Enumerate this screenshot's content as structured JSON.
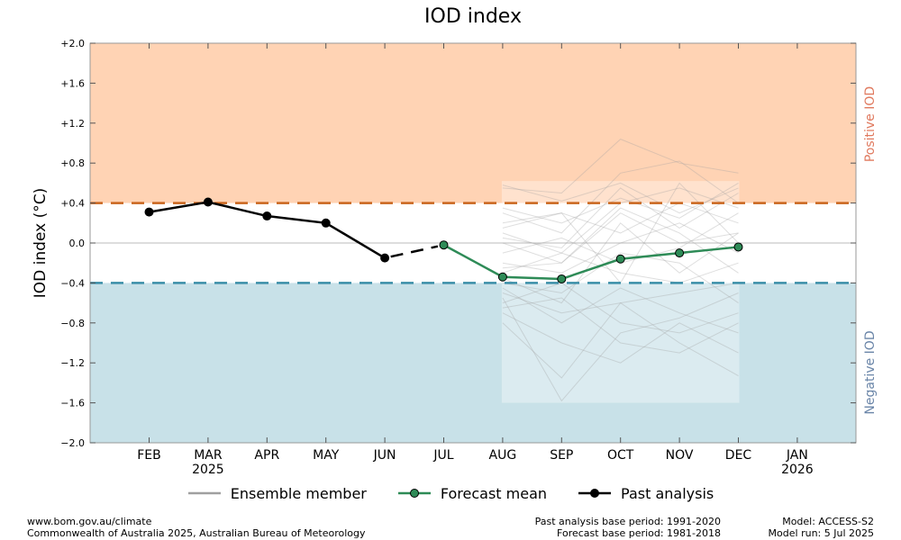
{
  "chart_data": {
    "type": "line",
    "title": "IOD index",
    "ylabel": "IOD index (°C)",
    "ylim": [
      -2.0,
      2.0
    ],
    "yticks": [
      "+2.0",
      "+1.6",
      "+1.2",
      "+0.8",
      "+0.4",
      "0.0",
      "−0.4",
      "−0.8",
      "−1.2",
      "−1.6",
      "−2.0"
    ],
    "ytick_values": [
      2.0,
      1.6,
      1.2,
      0.8,
      0.4,
      0.0,
      -0.4,
      -0.8,
      -1.2,
      -1.6,
      -2.0
    ],
    "categories": [
      "FEB",
      "MAR",
      "APR",
      "MAY",
      "JUN",
      "JUL",
      "AUG",
      "SEP",
      "OCT",
      "NOV",
      "DEC",
      "JAN"
    ],
    "year_labels": [
      {
        "after": "MAR",
        "text": "2025"
      },
      {
        "after": "JAN",
        "text": "2026"
      }
    ],
    "thresholds": {
      "positive": 0.4,
      "negative": -0.4
    },
    "zone_labels": {
      "positive": "Positive IOD",
      "negative": "Negative IOD"
    },
    "colors": {
      "positive_fill": "#ffd3b4",
      "negative_fill": "#c8e1e8",
      "positive_line": "#c9651d",
      "negative_line": "#3a8ea8",
      "forecast": "#2e8b57",
      "past": "#000000",
      "ensemble": "#a0a0a0",
      "positive_text": "#e07a5f",
      "negative_text": "#6a85a8"
    },
    "series": [
      {
        "name": "Past analysis",
        "points": [
          [
            "FEB",
            0.31
          ],
          [
            "MAR",
            0.41
          ],
          [
            "APR",
            0.27
          ],
          [
            "MAY",
            0.2
          ],
          [
            "JUN",
            -0.15
          ]
        ]
      },
      {
        "name": "Past analysis (interim)",
        "points": [
          [
            "JUN",
            -0.15
          ],
          [
            "JUL",
            -0.02
          ]
        ]
      },
      {
        "name": "Forecast mean",
        "points": [
          [
            "JUL",
            -0.02
          ],
          [
            "AUG",
            -0.34
          ],
          [
            "SEP",
            -0.36
          ],
          [
            "OCT",
            -0.16
          ],
          [
            "NOV",
            -0.1
          ],
          [
            "DEC",
            -0.04
          ]
        ]
      }
    ],
    "ensemble": {
      "months": [
        "AUG",
        "SEP",
        "OCT",
        "NOV",
        "DEC"
      ],
      "members": [
        [
          0.58,
          0.42,
          0.6,
          0.3,
          0.55
        ],
        [
          0.55,
          0.5,
          1.04,
          0.8,
          0.7
        ],
        [
          0.35,
          0.2,
          0.45,
          0.25,
          0.6
        ],
        [
          0.2,
          0.3,
          0.1,
          0.4,
          0.2
        ],
        [
          0.1,
          -0.1,
          0.4,
          0.55,
          0.35
        ],
        [
          0.0,
          -0.2,
          0.3,
          0.0,
          0.1
        ],
        [
          -0.1,
          0.05,
          -0.2,
          -0.05,
          0.3
        ],
        [
          -0.2,
          -0.3,
          0.0,
          0.2,
          -0.1
        ],
        [
          -0.3,
          -0.1,
          -0.3,
          -0.4,
          -0.2
        ],
        [
          -0.4,
          -0.5,
          -0.1,
          -0.2,
          -0.6
        ],
        [
          -0.5,
          -0.7,
          -0.6,
          -0.5,
          -0.4
        ],
        [
          -0.6,
          -0.4,
          -0.8,
          -0.9,
          -0.7
        ],
        [
          -0.7,
          -1.0,
          -1.2,
          -0.8,
          -1.1
        ],
        [
          -0.8,
          -1.35,
          -0.6,
          -1.0,
          -1.33
        ],
        [
          -0.55,
          -1.58,
          -0.9,
          -0.75,
          -0.5
        ],
        [
          -0.35,
          -0.6,
          0.2,
          -0.3,
          0.1
        ],
        [
          0.3,
          0.1,
          0.7,
          0.82,
          0.4
        ],
        [
          -0.25,
          -0.2,
          0.35,
          0.1,
          -0.3
        ],
        [
          -0.45,
          -0.8,
          -0.45,
          -0.7,
          -0.9
        ],
        [
          0.15,
          0.3,
          -0.4,
          0.6,
          0.0
        ],
        [
          -0.65,
          -0.55,
          -1.0,
          -1.1,
          -0.8
        ],
        [
          0.05,
          -0.05,
          0.55,
          0.15,
          0.5
        ]
      ]
    },
    "legend": [
      {
        "label": "Ensemble member",
        "style": "ensemble"
      },
      {
        "label": "Forecast mean",
        "style": "forecast"
      },
      {
        "label": "Past analysis",
        "style": "past"
      }
    ]
  },
  "footer": {
    "left_line1": "www.bom.gov.au/climate",
    "left_line2": "Commonwealth of Australia 2025, Australian Bureau of Meteorology",
    "mid_line1": "Past analysis base period: 1991-2020",
    "mid_line2": "Forecast base period: 1981-2018",
    "right_line1": "Model: ACCESS-S2",
    "right_line2": "Model run: 5 Jul 2025"
  }
}
